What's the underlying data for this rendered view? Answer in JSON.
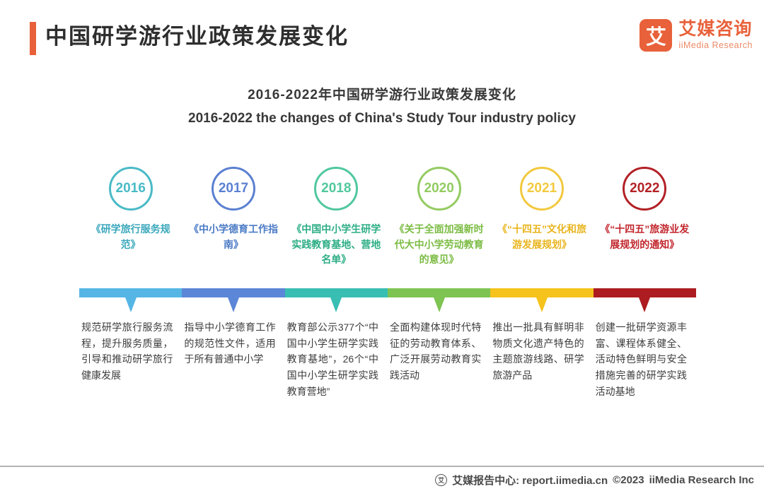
{
  "header": {
    "title": "中国研学游行业政策发展变化",
    "accent_color": "#E8613A",
    "logo": {
      "mark": "艾",
      "name_cn": "艾媒咨询",
      "name_en": "iiMedia Research",
      "color": "#E8613A"
    }
  },
  "subtitle": {
    "line_cn": "2016-2022年中国研学游行业政策发展变化",
    "line_en": "2016-2022 the changes of China's Study Tour industry policy"
  },
  "timeline": {
    "items": [
      {
        "year": "2016",
        "policy": "《研学旅行服务规范》",
        "description": "规范研学旅行服务流程，提升服务质量，引导和推动研学旅行健康发展",
        "circle_color": "#4ABAC6",
        "bar_color": "#55B6E5",
        "title_color": "#3BA8BC"
      },
      {
        "year": "2017",
        "policy": "《中小学德育工作指南》",
        "description": "指导中小学德育工作的规范性文件，适用于所有普通中小学",
        "circle_color": "#5B80D1",
        "bar_color": "#5C86D7",
        "title_color": "#4C7BC6"
      },
      {
        "year": "2018",
        "policy": "《中国中小学生研学实践教育基地、营地名单》",
        "description": "教育部公示377个“中国中小学生研学实践教育基地”，26个“中国中小学生研学实践教育营地”",
        "circle_color": "#50C89E",
        "bar_color": "#39BEB3",
        "title_color": "#2EAE85"
      },
      {
        "year": "2020",
        "policy": "《关于全面加强新时代大中小学劳动教育的意见》",
        "description": "全面构建体现时代特征的劳动教育体系、广泛开展劳动教育实践活动",
        "circle_color": "#93CB61",
        "bar_color": "#7EC452",
        "title_color": "#7CBC44"
      },
      {
        "year": "2021",
        "policy": "《“十四五”文化和旅游发展规划》",
        "description": "推出一批具有鲜明非物质文化遗产特色的主题旅游线路、研学旅游产品",
        "circle_color": "#F2C93F",
        "bar_color": "#F6C31D",
        "title_color": "#E9B51F"
      },
      {
        "year": "2022",
        "policy": "《“十四五”旅游业发展规划的通知》",
        "description": "创建一批研学资源丰富、课程体系健全、活动特色鲜明与安全措施完善的研学实践活动基地",
        "circle_color": "#B22126",
        "bar_color": "#AC1C20",
        "title_color": "#C2272E"
      }
    ]
  },
  "footer": {
    "icon": "iimedia-circle-icon",
    "icon_glyph": "艾",
    "report_center": "艾媒报告中心: report.iimedia.cn",
    "copyright": "©2023",
    "company": "iiMedia Research Inc"
  }
}
